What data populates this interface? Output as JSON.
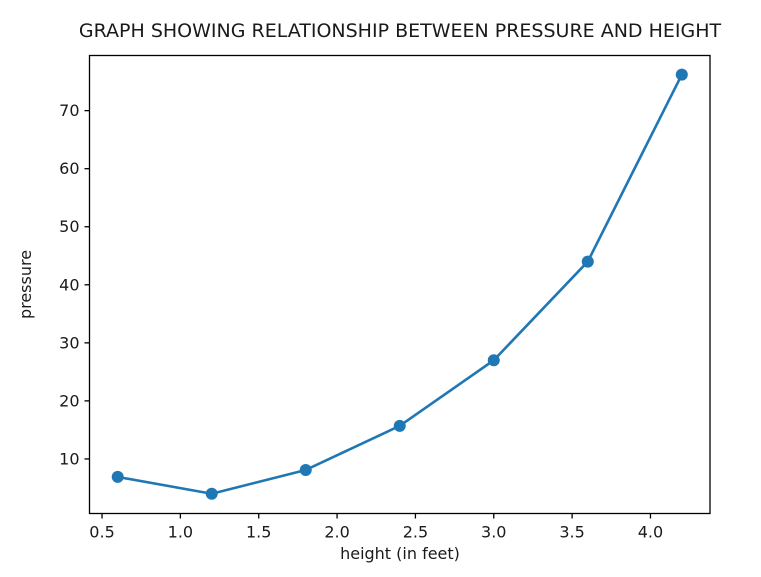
{
  "chart_data": {
    "type": "line",
    "title": "GRAPH SHOWING RELATIONSHIP BETWEEN PRESSURE AND HEIGHT",
    "xlabel": "height (in feet)",
    "ylabel": "pressure",
    "x": [
      0.6,
      1.2,
      1.8,
      2.4,
      3.0,
      3.6,
      4.2
    ],
    "y": [
      6.9,
      4.0,
      8.1,
      15.7,
      27.0,
      44.0,
      76.2
    ],
    "xlim": [
      0.42,
      4.38
    ],
    "ylim": [
      0.6,
      79.5
    ],
    "x_tick_values": [
      0.5,
      1.0,
      1.5,
      2.0,
      2.5,
      3.0,
      3.5,
      4.0
    ],
    "x_tick_labels": [
      "0.5",
      "1.0",
      "1.5",
      "2.0",
      "2.5",
      "3.0",
      "3.5",
      "4.0"
    ],
    "y_tick_values": [
      10,
      20,
      30,
      40,
      50,
      60,
      70
    ],
    "y_tick_labels": [
      "10",
      "20",
      "30",
      "40",
      "50",
      "60",
      "70"
    ],
    "grid": false,
    "legend": "none",
    "line_color": "#1f77b4",
    "marker": "circle",
    "axis_color": "#000000",
    "background_color": "#ffffff"
  }
}
